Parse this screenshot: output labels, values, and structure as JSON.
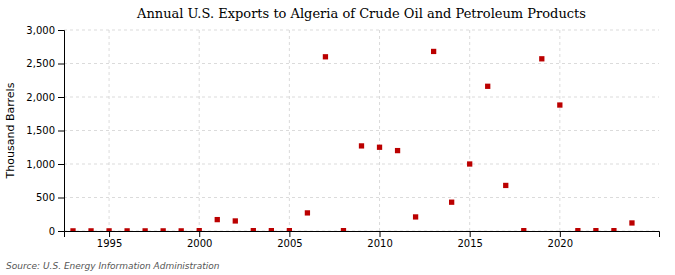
{
  "chart_data": {
    "type": "scatter",
    "title": "Annual U.S. Exports to Algeria of Crude Oil and Petroleum Products",
    "ylabel": "Thousand Barrels",
    "source": "Source: U.S. Energy Information Administration",
    "x": [
      1993,
      1994,
      1995,
      1996,
      1997,
      1998,
      1999,
      2000,
      2001,
      2002,
      2003,
      2004,
      2005,
      2006,
      2007,
      2008,
      2009,
      2010,
      2011,
      2012,
      2013,
      2014,
      2015,
      2016,
      2017,
      2018,
      2019,
      2020,
      2021,
      2022,
      2023,
      2024
    ],
    "values": [
      2,
      2,
      2,
      2,
      2,
      2,
      2,
      5,
      170,
      150,
      5,
      5,
      5,
      270,
      2600,
      5,
      1270,
      1250,
      1200,
      210,
      2680,
      430,
      1000,
      2160,
      680,
      5,
      2570,
      1880,
      5,
      5,
      5,
      120
    ],
    "color": "#bb0000",
    "marker": "square",
    "xlim": [
      1992.5,
      2025.5
    ],
    "ylim": [
      0,
      3000
    ],
    "xticks": [
      1995,
      2000,
      2005,
      2010,
      2015,
      2020
    ],
    "yticks": [
      0,
      500,
      {
        "value": 1000,
        "label": "1,000"
      },
      {
        "value": 1500,
        "label": "1,500"
      },
      {
        "value": 2000,
        "label": "2,000"
      },
      {
        "value": 2500,
        "label": "2,500"
      },
      {
        "value": 3000,
        "label": "3,000"
      }
    ],
    "grid": true
  }
}
